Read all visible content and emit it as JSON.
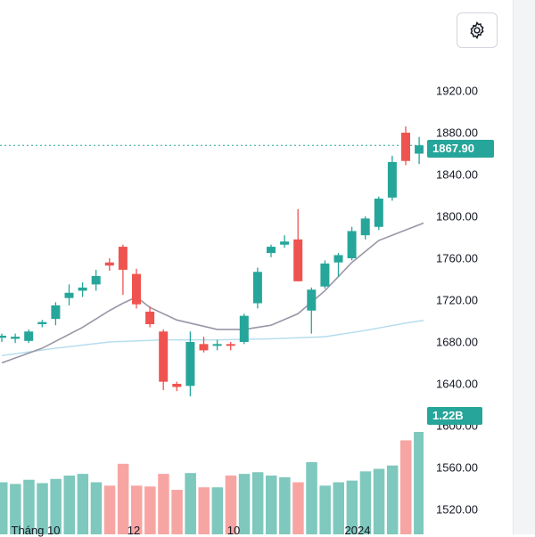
{
  "price_axis": {
    "ticks": [
      "1920.00",
      "1880.00",
      "1840.00",
      "1800.00",
      "1760.00",
      "1720.00",
      "1680.00",
      "1640.00",
      "1600.00",
      "1560.00",
      "1520.00"
    ],
    "last_price": "1867.90",
    "volume": "1.22B"
  },
  "time_axis": {
    "labels": [
      "Tháng 10",
      "12",
      "10",
      "2024"
    ]
  },
  "toolbar": {
    "settings_icon": "gear-icon"
  },
  "colors": {
    "up": "#26a69a",
    "down": "#ef5350",
    "up_vol": "#7ec8bd",
    "down_vol": "#f7a5a3",
    "ma_short": "#9b95a6",
    "ma_long": "#b3dced"
  },
  "chart_data": {
    "type": "candlestick",
    "ylim": [
      1512,
      1930
    ],
    "last_price": 1867.9,
    "candles": [
      {
        "o": 1684,
        "h": 1688,
        "l": 1680,
        "c": 1686
      },
      {
        "o": 1683,
        "h": 1688,
        "l": 1679,
        "c": 1685
      },
      {
        "o": 1681,
        "h": 1692,
        "l": 1679,
        "c": 1690
      },
      {
        "o": 1697,
        "h": 1701,
        "l": 1694,
        "c": 1699
      },
      {
        "o": 1702,
        "h": 1718,
        "l": 1696,
        "c": 1715
      },
      {
        "o": 1722,
        "h": 1735,
        "l": 1715,
        "c": 1727
      },
      {
        "o": 1729,
        "h": 1737,
        "l": 1723,
        "c": 1732
      },
      {
        "o": 1735,
        "h": 1749,
        "l": 1729,
        "c": 1743
      },
      {
        "o": 1756,
        "h": 1760,
        "l": 1748,
        "c": 1753
      },
      {
        "o": 1771,
        "h": 1773,
        "l": 1725,
        "c": 1749
      },
      {
        "o": 1745,
        "h": 1750,
        "l": 1712,
        "c": 1716
      },
      {
        "o": 1709,
        "h": 1714,
        "l": 1694,
        "c": 1697
      },
      {
        "o": 1690,
        "h": 1692,
        "l": 1634,
        "c": 1642
      },
      {
        "o": 1640,
        "h": 1642,
        "l": 1633,
        "c": 1637
      },
      {
        "o": 1638,
        "h": 1690,
        "l": 1628,
        "c": 1680
      },
      {
        "o": 1678,
        "h": 1685,
        "l": 1670,
        "c": 1672
      },
      {
        "o": 1678,
        "h": 1682,
        "l": 1672,
        "c": 1678
      },
      {
        "o": 1678,
        "h": 1680,
        "l": 1672,
        "c": 1677
      },
      {
        "o": 1680,
        "h": 1707,
        "l": 1678,
        "c": 1705
      },
      {
        "o": 1717,
        "h": 1751,
        "l": 1712,
        "c": 1747
      },
      {
        "o": 1765,
        "h": 1773,
        "l": 1761,
        "c": 1771
      },
      {
        "o": 1773,
        "h": 1782,
        "l": 1770,
        "c": 1776
      },
      {
        "o": 1778,
        "h": 1807,
        "l": 1738,
        "c": 1738
      },
      {
        "o": 1710,
        "h": 1732,
        "l": 1688,
        "c": 1730
      },
      {
        "o": 1733,
        "h": 1758,
        "l": 1731,
        "c": 1755
      },
      {
        "o": 1756,
        "h": 1765,
        "l": 1742,
        "c": 1763
      },
      {
        "o": 1760,
        "h": 1790,
        "l": 1758,
        "c": 1786
      },
      {
        "o": 1782,
        "h": 1800,
        "l": 1778,
        "c": 1798
      },
      {
        "o": 1790,
        "h": 1819,
        "l": 1787,
        "c": 1817
      },
      {
        "o": 1818,
        "h": 1858,
        "l": 1815,
        "c": 1852
      },
      {
        "o": 1880,
        "h": 1886,
        "l": 1849,
        "c": 1853
      },
      {
        "o": 1860,
        "h": 1876,
        "l": 1850,
        "c": 1867.9
      }
    ],
    "volumes": [
      0.62,
      0.6,
      0.65,
      0.61,
      0.66,
      0.7,
      0.72,
      0.62,
      0.58,
      0.84,
      0.58,
      0.57,
      0.72,
      0.53,
      0.73,
      0.56,
      0.56,
      0.7,
      0.72,
      0.74,
      0.7,
      0.68,
      0.62,
      0.86,
      0.58,
      0.62,
      0.64,
      0.75,
      0.78,
      0.82,
      1.12,
      1.22
    ],
    "ma_short": [
      [
        0,
        1660
      ],
      [
        3,
        1674
      ],
      [
        6,
        1694
      ],
      [
        8,
        1710
      ],
      [
        9,
        1717
      ],
      [
        10,
        1723
      ],
      [
        11,
        1713
      ],
      [
        13,
        1701
      ],
      [
        16,
        1692
      ],
      [
        18,
        1692
      ],
      [
        20,
        1696
      ],
      [
        22,
        1707
      ],
      [
        24,
        1729
      ],
      [
        26,
        1756
      ],
      [
        28,
        1777
      ],
      [
        30,
        1787
      ],
      [
        32,
        1797
      ]
    ],
    "ma_long": [
      [
        0,
        1667
      ],
      [
        4,
        1674
      ],
      [
        8,
        1680
      ],
      [
        12,
        1682
      ],
      [
        16,
        1682
      ],
      [
        20,
        1683
      ],
      [
        24,
        1685
      ],
      [
        27,
        1691
      ],
      [
        30,
        1698
      ],
      [
        32,
        1702
      ]
    ]
  }
}
